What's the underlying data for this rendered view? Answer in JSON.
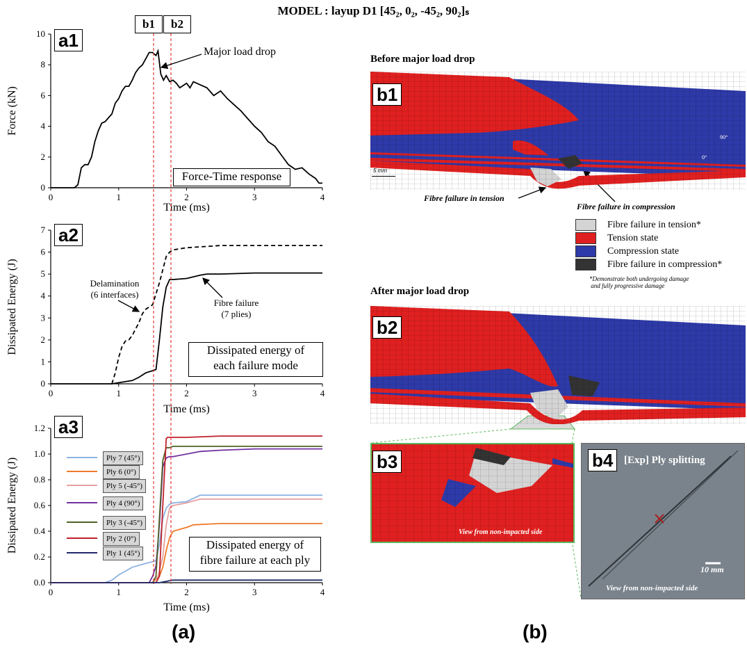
{
  "title": "MODEL : layup D1 [45₂, 0₂, -45₂, 90₂]ₛ",
  "markers": {
    "b1": "b1",
    "b2": "b2"
  },
  "panel_a": {
    "a1": {
      "label": "a1",
      "ylabel": "Force (kN)",
      "xlabel": "Time (ms)",
      "annotation": "Major load drop",
      "box": "Force-Time response"
    },
    "a2": {
      "label": "a2",
      "ylabel": "Dissipated Energy (J)",
      "xlabel": "Time (ms)",
      "delam_line1": "Delamination",
      "delam_line2": "(6 interfaces)",
      "fibre_line1": "Fibre failure",
      "fibre_line2": "(7 plies)",
      "box_line1": "Dissipated energy of",
      "box_line2": "each failure mode"
    },
    "a3": {
      "label": "a3",
      "ylabel": "Dissipated Energy (J)",
      "xlabel": "Time (ms)",
      "box_line1": "Dissipated energy of",
      "box_line2": "fibre failure at each ply"
    },
    "bottom": "(a)"
  },
  "panel_b": {
    "b1_title": "Before major load drop",
    "b2_title": "After major load drop",
    "b1": "b1",
    "b2": "b2",
    "b3": "b3",
    "b4": "b4",
    "scale_b1": "5 mm",
    "axis_90": "90°",
    "axis_0": "0°",
    "note_tension": "Fibre failure in tension",
    "note_compression": "Fibre failure in compression",
    "legend": [
      {
        "label": "Fibre failure in tension*",
        "color": "#d4d4d4"
      },
      {
        "label": "Tension state",
        "color": "#e02020"
      },
      {
        "label": "Compression state",
        "color": "#2e3aa8"
      },
      {
        "label": "Fibre failure in compression*",
        "color": "#333333"
      }
    ],
    "legend_note1": "*Demonstrate both undergoing damage",
    "legend_note2": " and fully progressive damage",
    "b3_caption": "View from non-impacted side",
    "b4_title": "[Exp] Ply splitting",
    "b4_scale": "10 mm",
    "b4_caption": "View from non-impacted side",
    "bottom": "(b)"
  },
  "chart_data": [
    {
      "type": "line",
      "id": "a1",
      "xlabel": "Time (ms)",
      "ylabel": "Force (kN)",
      "xlim": [
        0,
        4
      ],
      "ylim": [
        0,
        10
      ],
      "xticks": [
        0,
        1,
        2,
        3,
        4
      ],
      "yticks": [
        0,
        2,
        4,
        6,
        8,
        10
      ],
      "series": [
        {
          "color": "#000000",
          "dash": "solid",
          "x": [
            0,
            0.35,
            0.4,
            0.45,
            0.5,
            0.55,
            0.6,
            0.65,
            0.7,
            0.75,
            0.8,
            0.9,
            0.95,
            1.0,
            1.05,
            1.1,
            1.15,
            1.2,
            1.25,
            1.3,
            1.35,
            1.4,
            1.45,
            1.5,
            1.55,
            1.58,
            1.62,
            1.66,
            1.7,
            1.75,
            1.8,
            1.85,
            1.9,
            2.0,
            2.05,
            2.1,
            2.2,
            2.3,
            2.4,
            2.5,
            2.6,
            2.7,
            2.8,
            2.9,
            3.0,
            3.1,
            3.2,
            3.3,
            3.4,
            3.5,
            3.6,
            3.7,
            3.8,
            3.9,
            3.95,
            4.0
          ],
          "y": [
            0,
            0,
            0.2,
            1.3,
            1.5,
            1.5,
            2.0,
            3.0,
            3.7,
            4.2,
            4.3,
            4.8,
            5.5,
            5.8,
            6.3,
            6.6,
            6.6,
            7.0,
            7.5,
            7.8,
            8.0,
            8.4,
            8.8,
            8.8,
            8.6,
            8.9,
            7.4,
            7.0,
            7.3,
            6.9,
            7.0,
            6.8,
            6.5,
            6.8,
            6.5,
            6.9,
            6.7,
            6.5,
            6.0,
            6.3,
            5.8,
            5.4,
            5.0,
            4.5,
            4.0,
            3.6,
            3.0,
            2.7,
            2.1,
            1.5,
            1.2,
            1.3,
            0.9,
            0.6,
            0.3,
            0.3
          ]
        }
      ]
    },
    {
      "type": "line",
      "id": "a2",
      "xlabel": "Time (ms)",
      "ylabel": "Dissipated Energy (J)",
      "xlim": [
        0,
        4
      ],
      "ylim": [
        0,
        7
      ],
      "xticks": [
        0,
        1,
        2,
        3,
        4
      ],
      "yticks": [
        0,
        1,
        2,
        3,
        4,
        5,
        6,
        7
      ],
      "series": [
        {
          "color": "#000000",
          "dash": "dashed",
          "x": [
            0.9,
            0.95,
            1.0,
            1.05,
            1.1,
            1.15,
            1.2,
            1.3,
            1.35,
            1.4,
            1.45,
            1.5,
            1.55,
            1.6,
            1.65,
            1.7,
            1.75,
            1.8,
            1.9,
            2.0,
            2.5,
            3.0,
            3.5,
            4.0
          ],
          "y": [
            0,
            0.5,
            1.2,
            1.7,
            1.95,
            2.0,
            2.2,
            2.8,
            3.2,
            3.4,
            3.5,
            3.6,
            4.1,
            4.6,
            5.2,
            5.8,
            6.0,
            6.1,
            6.15,
            6.2,
            6.3,
            6.3,
            6.3,
            6.3
          ]
        },
        {
          "color": "#000000",
          "dash": "solid",
          "x": [
            0,
            0.9,
            1.0,
            1.2,
            1.3,
            1.4,
            1.5,
            1.55,
            1.6,
            1.65,
            1.7,
            1.75,
            1.8,
            2.0,
            2.2,
            2.3,
            2.5,
            3.0,
            3.5,
            4.0
          ],
          "y": [
            0,
            0,
            0.05,
            0.15,
            0.3,
            0.5,
            0.6,
            0.65,
            2.0,
            3.5,
            4.4,
            4.75,
            4.75,
            4.8,
            4.95,
            5.0,
            5.0,
            5.05,
            5.05,
            5.05
          ]
        }
      ]
    },
    {
      "type": "line",
      "id": "a3",
      "xlabel": "Time (ms)",
      "ylabel": "Dissipated Energy (J)",
      "xlim": [
        0,
        4
      ],
      "ylim": [
        0,
        1.2
      ],
      "xticks": [
        0,
        1,
        2,
        3,
        4
      ],
      "yticks": [
        0,
        0.2,
        0.4,
        0.6,
        0.8,
        1.0,
        1.2
      ],
      "series": [
        {
          "name": "Ply 7 (45°)",
          "color": "#8db3e2",
          "x": [
            0,
            0.8,
            0.9,
            1.0,
            1.2,
            1.4,
            1.55,
            1.6,
            1.65,
            1.7,
            1.75,
            1.8,
            2.0,
            2.2,
            2.5,
            3.0,
            4.0
          ],
          "y": [
            0,
            0,
            0.02,
            0.06,
            0.12,
            0.15,
            0.17,
            0.3,
            0.5,
            0.58,
            0.61,
            0.62,
            0.63,
            0.68,
            0.68,
            0.68,
            0.68
          ]
        },
        {
          "name": "Ply 6 (0°)",
          "color": "#f07a28",
          "x": [
            0,
            1.5,
            1.6,
            1.65,
            1.7,
            1.75,
            1.8,
            2.0,
            2.1,
            2.5,
            3.0,
            4.0
          ],
          "y": [
            0,
            0,
            0.05,
            0.12,
            0.25,
            0.35,
            0.4,
            0.43,
            0.45,
            0.46,
            0.46,
            0.46
          ]
        },
        {
          "name": "Ply 5 (-45°)",
          "color": "#e6a0a0",
          "x": [
            0,
            1.5,
            1.58,
            1.65,
            1.7,
            1.75,
            1.8,
            2.0,
            2.2,
            2.5,
            3.0,
            4.0
          ],
          "y": [
            0,
            0,
            0.05,
            0.2,
            0.45,
            0.58,
            0.6,
            0.62,
            0.65,
            0.65,
            0.65,
            0.65
          ]
        },
        {
          "name": "Ply 4 (90°)",
          "color": "#7030a0",
          "x": [
            0,
            1.45,
            1.5,
            1.55,
            1.6,
            1.65,
            1.7,
            1.75,
            1.8,
            2.0,
            2.2,
            2.5,
            3.0,
            4.0
          ],
          "y": [
            0,
            0,
            0.05,
            0.13,
            0.45,
            0.9,
            0.97,
            0.98,
            0.98,
            1.0,
            1.02,
            1.03,
            1.04,
            1.04
          ]
        },
        {
          "name": "Ply 3 (-45°)",
          "color": "#4f6228",
          "x": [
            0,
            1.5,
            1.55,
            1.6,
            1.65,
            1.7,
            1.75,
            1.8,
            2.0,
            2.5,
            3.0,
            4.0
          ],
          "y": [
            0,
            0,
            0.05,
            0.5,
            0.95,
            1.05,
            1.05,
            1.06,
            1.06,
            1.06,
            1.06,
            1.06
          ]
        },
        {
          "name": "Ply 2 (0°)",
          "color": "#c0202a",
          "x": [
            0,
            1.55,
            1.6,
            1.65,
            1.7,
            1.72,
            1.8,
            2.0,
            2.5,
            3.0,
            4.0
          ],
          "y": [
            0,
            0,
            0.05,
            0.6,
            1.12,
            1.13,
            1.13,
            1.13,
            1.14,
            1.14,
            1.14
          ]
        },
        {
          "name": "Ply 1 (45°)",
          "color": "#1f2a6b",
          "x": [
            0,
            1.6,
            1.7,
            1.8,
            2.0,
            3.0,
            4.0
          ],
          "y": [
            0,
            0,
            0.01,
            0.02,
            0.02,
            0.02,
            0.02
          ]
        }
      ]
    }
  ]
}
